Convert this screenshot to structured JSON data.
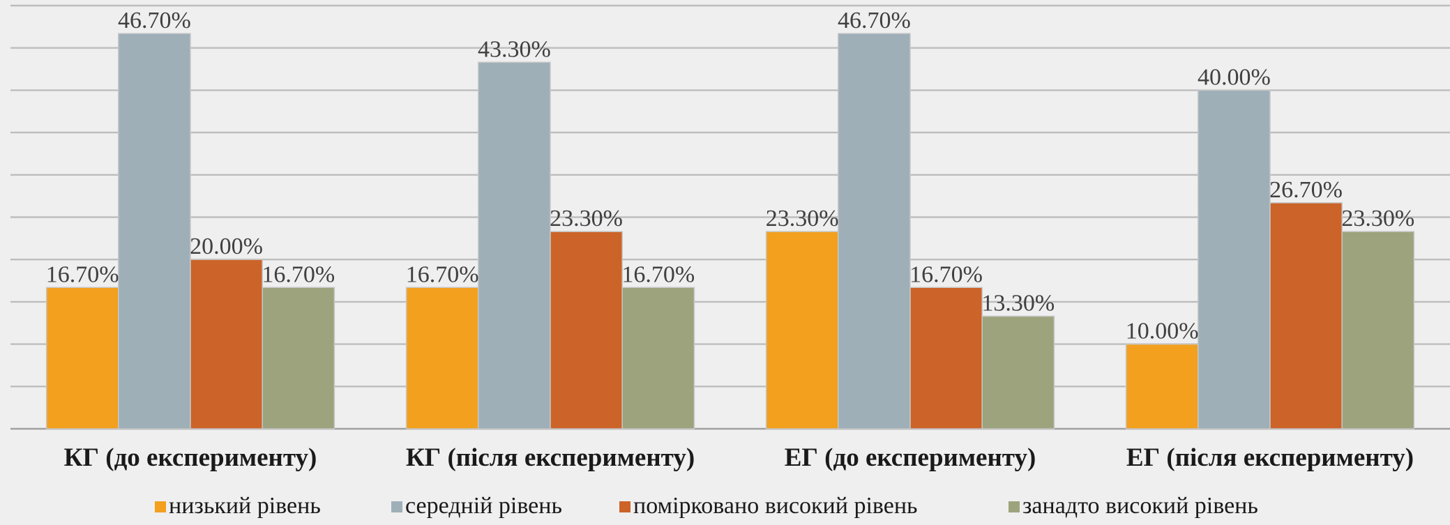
{
  "chart_data": {
    "type": "bar",
    "categories": [
      "КГ (до експерименту)",
      "КГ (після експерименту)",
      "ЕГ (до експерименту)",
      "ЕГ (після експерименту)"
    ],
    "series": [
      {
        "name": "низький рівень",
        "color": "#f2a01e",
        "values": [
          16.7,
          16.7,
          23.3,
          10.0
        ],
        "labels": [
          "16.70%",
          "16.70%",
          "23.30%",
          "10.00%"
        ]
      },
      {
        "name": "середній рівень",
        "color": "#9eafb8",
        "values": [
          46.7,
          43.3,
          46.7,
          40.0
        ],
        "labels": [
          "46.70%",
          "43.30%",
          "46.70%",
          "40.00%"
        ]
      },
      {
        "name": "помірковано високий рівень",
        "color": "#cc6328",
        "values": [
          20.0,
          23.3,
          16.7,
          26.7
        ],
        "labels": [
          "20.00%",
          "23.30%",
          "16.70%",
          "26.70%"
        ]
      },
      {
        "name": "занадто високий рівень",
        "color": "#9da37c",
        "values": [
          16.7,
          16.7,
          13.3,
          23.3
        ],
        "labels": [
          "16.70%",
          "16.70%",
          "13.30%",
          "23.30%"
        ]
      }
    ],
    "ylim": [
      0,
      50
    ],
    "y_grid_step": 5,
    "grid": true,
    "y_axis_labels_visible": false,
    "legend_position": "bottom",
    "title": "",
    "xlabel": "",
    "ylabel": ""
  }
}
